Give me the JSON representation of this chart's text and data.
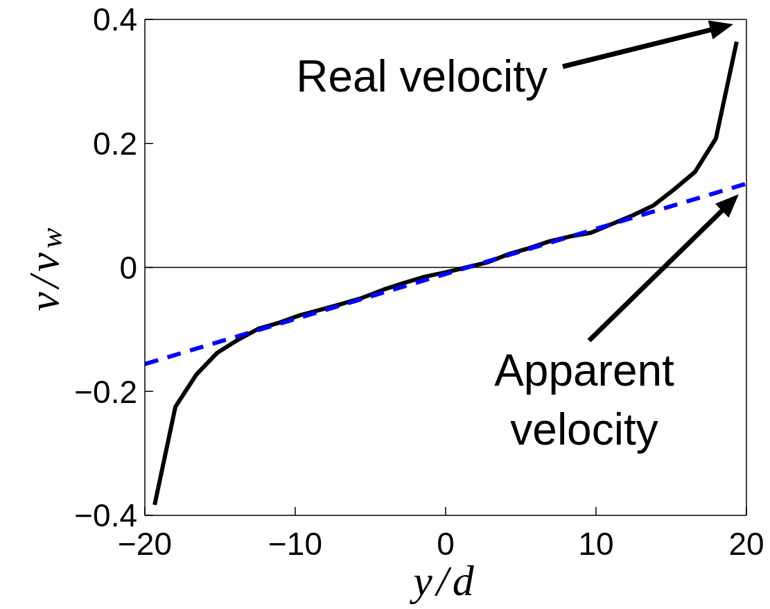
{
  "chart_data": {
    "type": "line",
    "xlabel": "y/d",
    "ylabel": "v/v$_{w}$",
    "xlim": [
      -20,
      20
    ],
    "xticks": [
      -20,
      -10,
      0,
      10,
      20
    ],
    "ylim": [
      -0.4,
      0.4
    ],
    "yticks": [
      -0.4,
      -0.2,
      0,
      0.2,
      0.4
    ],
    "marker": "none",
    "series": [
      {
        "color": "#000000",
        "line_style": "solid",
        "x": [
          -19.35,
          -17.97,
          -16.58,
          -15.2,
          -13.82,
          -12.44,
          -11.05,
          -9.67,
          -8.29,
          -6.91,
          -5.53,
          -4.15,
          -2.76,
          -1.38,
          0,
          1.38,
          2.76,
          4.15,
          5.53,
          6.91,
          8.29,
          9.67,
          11.05,
          12.44,
          13.82,
          15.2,
          16.58,
          17.97,
          19.35
        ],
        "values": [
          -0.383,
          -0.225,
          -0.173,
          -0.138,
          -0.117,
          -0.099,
          -0.089,
          -0.077,
          -0.068,
          -0.059,
          -0.049,
          -0.036,
          -0.025,
          -0.015,
          -0.008,
          0,
          0.008,
          0.021,
          0.031,
          0.042,
          0.05,
          0.056,
          0.07,
          0.084,
          0.1,
          0.126,
          0.154,
          0.208,
          0.364
        ]
      },
      {
        "color": "#0000ff",
        "line_style": "dashed",
        "x": [
          -20,
          20
        ],
        "values": [
          -0.156,
          0.135
        ]
      }
    ],
    "ref_lines": [
      {
        "axis": "y",
        "value": 0,
        "color": "#000000"
      }
    ],
    "annotations": [
      "Real velocity",
      "Apparent\nvelocity"
    ]
  }
}
